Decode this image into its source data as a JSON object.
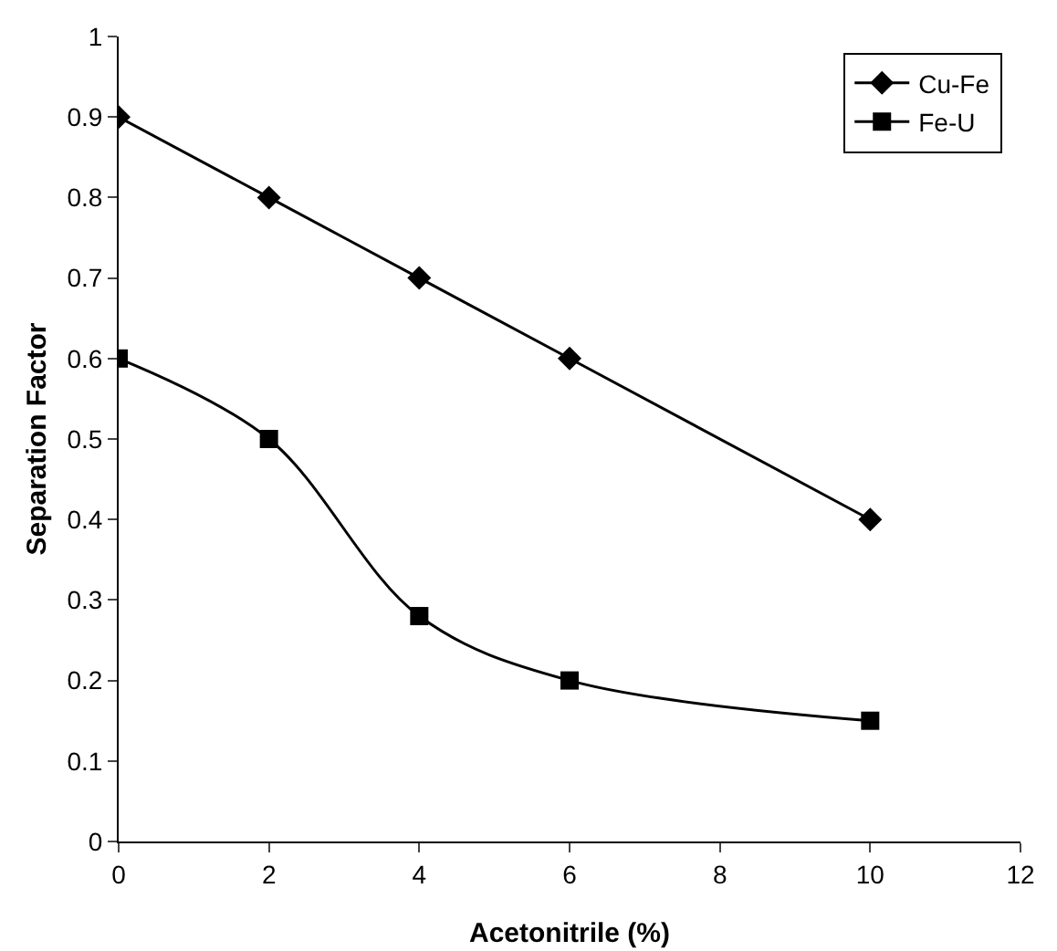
{
  "chart_data": {
    "type": "line",
    "xlabel": "Acetonitrile (%)",
    "ylabel": "Separation Factor",
    "xlim": [
      0,
      12
    ],
    "xticks": [
      0,
      2,
      4,
      6,
      8,
      10,
      12
    ],
    "ylim": [
      0,
      1
    ],
    "yticks": [
      0,
      0.1,
      0.2,
      0.3,
      0.4,
      0.5,
      0.6,
      0.7,
      0.8,
      0.9,
      1
    ],
    "grid": false,
    "legend": "top right",
    "line_style": "solid",
    "series": [
      {
        "name": "Cu-Fe",
        "color": "#000000",
        "marker": "diamond",
        "x": [
          0,
          2,
          4,
          6,
          10
        ],
        "values": [
          0.9,
          0.8,
          0.7,
          0.6,
          0.4
        ]
      },
      {
        "name": "Fe-U",
        "color": "#000000",
        "marker": "square",
        "x": [
          0,
          2,
          4,
          6,
          10
        ],
        "values": [
          0.6,
          0.5,
          0.28,
          0.2,
          0.15
        ]
      }
    ]
  }
}
